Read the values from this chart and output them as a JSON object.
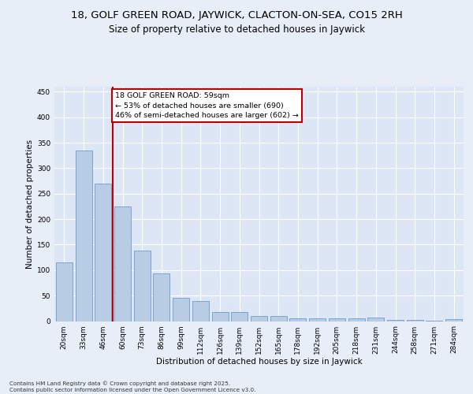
{
  "title1": "18, GOLF GREEN ROAD, JAYWICK, CLACTON-ON-SEA, CO15 2RH",
  "title2": "Size of property relative to detached houses in Jaywick",
  "xlabel": "Distribution of detached houses by size in Jaywick",
  "ylabel": "Number of detached properties",
  "categories": [
    "20sqm",
    "33sqm",
    "46sqm",
    "60sqm",
    "73sqm",
    "86sqm",
    "99sqm",
    "112sqm",
    "126sqm",
    "139sqm",
    "152sqm",
    "165sqm",
    "178sqm",
    "192sqm",
    "205sqm",
    "218sqm",
    "231sqm",
    "244sqm",
    "258sqm",
    "271sqm",
    "284sqm"
  ],
  "values": [
    115,
    335,
    270,
    225,
    138,
    93,
    46,
    40,
    18,
    18,
    10,
    10,
    6,
    5,
    6,
    6,
    7,
    3,
    2,
    1,
    4
  ],
  "bar_color": "#b8cce4",
  "bar_edge_color": "#5b8fc9",
  "vline_color": "#c00000",
  "ylim": [
    0,
    460
  ],
  "yticks": [
    0,
    50,
    100,
    150,
    200,
    250,
    300,
    350,
    400,
    450
  ],
  "annotation_text": "18 GOLF GREEN ROAD: 59sqm\n← 53% of detached houses are smaller (690)\n46% of semi-detached houses are larger (602) →",
  "annotation_box_color": "#ffffff",
  "annotation_box_edge": "#c00000",
  "bg_color": "#e8eef8",
  "plot_bg_color": "#dce6f5",
  "footer": "Contains HM Land Registry data © Crown copyright and database right 2025.\nContains public sector information licensed under the Open Government Licence v3.0.",
  "title_fontsize": 9.5,
  "subtitle_fontsize": 8.5,
  "xlabel_fontsize": 7.5,
  "ylabel_fontsize": 7.5,
  "tick_fontsize": 6.5,
  "ann_fontsize": 6.8,
  "footer_fontsize": 5.2
}
